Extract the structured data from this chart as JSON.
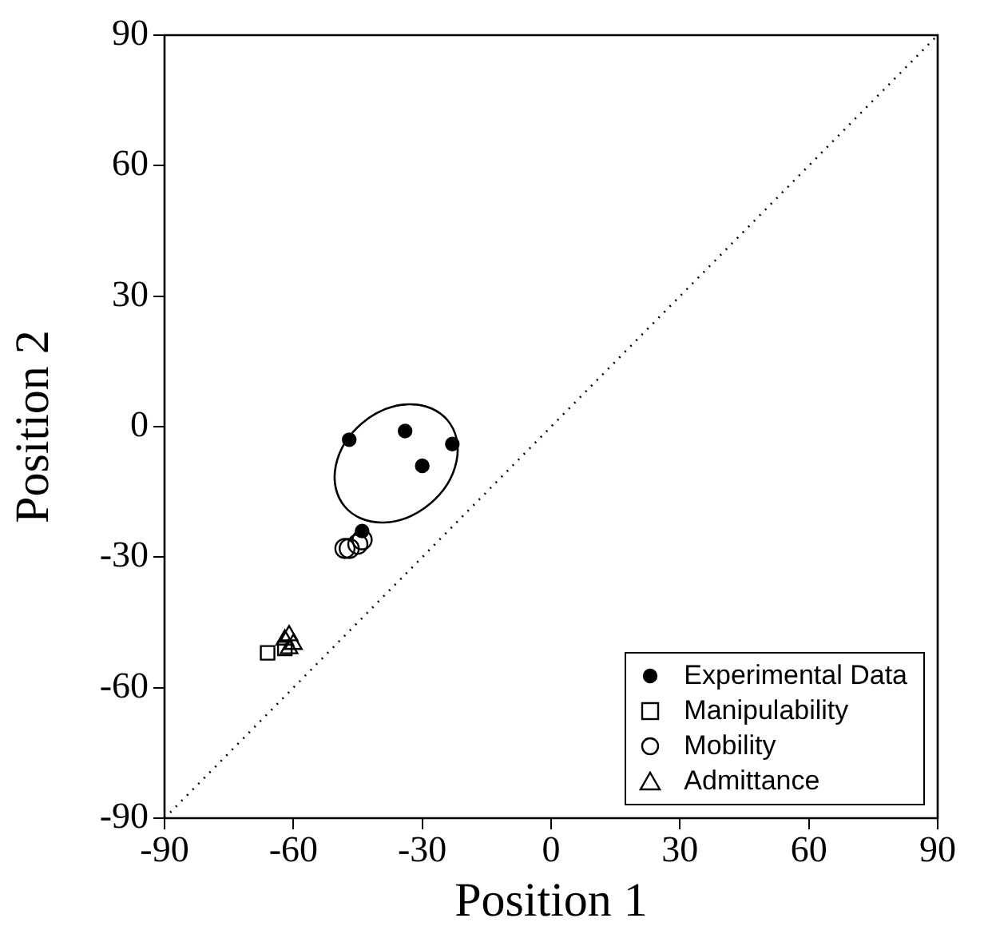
{
  "chart_data": {
    "type": "scatter",
    "xlabel": "Position 1",
    "ylabel": "Position 2",
    "xlim": [
      -90,
      90
    ],
    "ylim": [
      -90,
      90
    ],
    "xticks": [
      -90,
      -60,
      -30,
      0,
      30,
      60,
      90
    ],
    "yticks": [
      -90,
      -60,
      -30,
      0,
      30,
      60,
      90
    ],
    "grid": false,
    "legend": "bottom right",
    "series": [
      {
        "name": "Experimental Data",
        "marker": "circle",
        "color": "#000000",
        "x": [
          -47,
          -34,
          -23,
          -30,
          -44
        ],
        "values": [
          -3,
          -1,
          -4,
          -9,
          -24
        ]
      },
      {
        "name": "Manipulability",
        "marker": "square",
        "color": "#000000",
        "x": [
          -66,
          -62
        ],
        "values": [
          -52,
          -51
        ]
      },
      {
        "name": "Mobility",
        "marker": "circle",
        "color": "#000000",
        "x": [
          -48,
          -47,
          -45,
          -44
        ],
        "values": [
          -28,
          -28,
          -27,
          -26
        ]
      },
      {
        "name": "Admittance",
        "marker": "triangle",
        "color": "#000000",
        "x": [
          -62,
          -61,
          -60,
          -61
        ],
        "values": [
          -49,
          -48,
          -50,
          -51
        ]
      },
      {
        "type": "line",
        "marker": "none",
        "line_style": "dotted",
        "color": "#000000",
        "x": [
          -90,
          90
        ],
        "values": [
          -90,
          90
        ]
      }
    ]
  }
}
